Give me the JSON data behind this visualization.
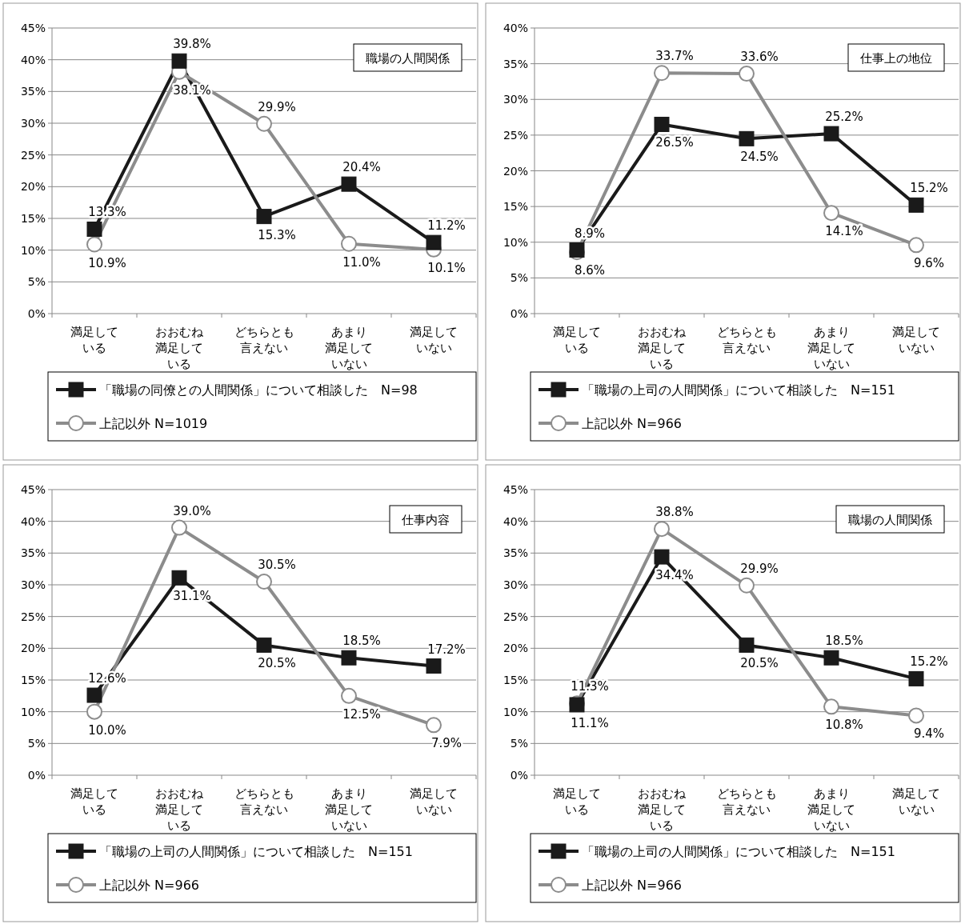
{
  "chart_data": [
    {
      "type": "line",
      "annotations": [
        "職場の人間関係"
      ],
      "categories": [
        "満足している",
        "おおむね満足している",
        "どちらとも言えない",
        "あまり満足していない",
        "満足していない"
      ],
      "ylim": [
        0,
        45
      ],
      "yticks": [
        {
          "value": 0,
          "label": "0%"
        },
        {
          "value": 5,
          "label": "5%"
        },
        {
          "value": 10,
          "label": "10%"
        },
        {
          "value": 15,
          "label": "15%"
        },
        {
          "value": 20,
          "label": "20%"
        },
        {
          "value": 25,
          "label": "25%"
        },
        {
          "value": 30,
          "label": "30%"
        },
        {
          "value": 35,
          "label": "35%"
        },
        {
          "value": 40,
          "label": "40%"
        },
        {
          "value": 45,
          "label": "45%"
        }
      ],
      "grid": "y",
      "legend": "bottom",
      "line_style": "solid",
      "series": [
        {
          "name": "「職場の同僚との人間関係」について相談した　N=98",
          "color": "#1a1a1a",
          "marker": "square",
          "values": [
            13.3,
            39.8,
            15.3,
            20.4,
            11.2
          ],
          "value_labels": [
            "13.3%",
            "39.8%",
            "15.3%",
            "20.4%",
            "11.2%"
          ]
        },
        {
          "name": "上記以外 N=1019",
          "color": "#8c8c8c",
          "marker": "circle",
          "values": [
            10.9,
            38.1,
            29.9,
            11.0,
            10.1
          ],
          "value_labels": [
            "10.9%",
            "38.1%",
            "29.9%",
            "11.0%",
            "10.1%"
          ]
        }
      ]
    },
    {
      "type": "line",
      "annotations": [
        "仕事上の地位"
      ],
      "categories": [
        "満足している",
        "おおむね満足している",
        "どちらとも言えない",
        "あまり満足していない",
        "満足していない"
      ],
      "ylim": [
        0,
        40
      ],
      "yticks": [
        {
          "value": 0,
          "label": "0%"
        },
        {
          "value": 5,
          "label": "5%"
        },
        {
          "value": 10,
          "label": "10%"
        },
        {
          "value": 15,
          "label": "15%"
        },
        {
          "value": 20,
          "label": "20%"
        },
        {
          "value": 25,
          "label": "25%"
        },
        {
          "value": 30,
          "label": "30%"
        },
        {
          "value": 35,
          "label": "35%"
        },
        {
          "value": 40,
          "label": "40%"
        }
      ],
      "grid": "y",
      "legend": "bottom",
      "line_style": "solid",
      "series": [
        {
          "name": "「職場の上司の人間関係」について相談した　N=151",
          "color": "#1a1a1a",
          "marker": "square",
          "values": [
            8.9,
            26.5,
            24.5,
            25.2,
            15.2
          ],
          "value_labels": [
            "8.9%",
            "26.5%",
            "24.5%",
            "25.2%",
            "15.2%"
          ]
        },
        {
          "name": "上記以外 N=966",
          "color": "#8c8c8c",
          "marker": "circle",
          "values": [
            8.6,
            33.7,
            33.6,
            14.1,
            9.6
          ],
          "value_labels": [
            "8.6%",
            "33.7%",
            "33.6%",
            "14.1%",
            "9.6%"
          ]
        }
      ]
    },
    {
      "type": "line",
      "annotations": [
        "仕事内容"
      ],
      "categories": [
        "満足している",
        "おおむね満足している",
        "どちらとも言えない",
        "あまり満足していない",
        "満足していない"
      ],
      "ylim": [
        0,
        45
      ],
      "yticks": [
        {
          "value": 0,
          "label": "0%"
        },
        {
          "value": 5,
          "label": "5%"
        },
        {
          "value": 10,
          "label": "10%"
        },
        {
          "value": 15,
          "label": "15%"
        },
        {
          "value": 20,
          "label": "20%"
        },
        {
          "value": 25,
          "label": "25%"
        },
        {
          "value": 30,
          "label": "30%"
        },
        {
          "value": 35,
          "label": "35%"
        },
        {
          "value": 40,
          "label": "40%"
        },
        {
          "value": 45,
          "label": "45%"
        }
      ],
      "grid": "y",
      "legend": "bottom",
      "line_style": "solid",
      "series": [
        {
          "name": "「職場の上司の人間関係」について相談した　N=151",
          "color": "#1a1a1a",
          "marker": "square",
          "values": [
            12.6,
            31.1,
            20.5,
            18.5,
            17.2
          ],
          "value_labels": [
            "12.6%",
            "31.1%",
            "20.5%",
            "18.5%",
            "17.2%"
          ]
        },
        {
          "name": "上記以外 N=966",
          "color": "#8c8c8c",
          "marker": "circle",
          "values": [
            10.0,
            39.0,
            30.5,
            12.5,
            7.9
          ],
          "value_labels": [
            "10.0%",
            "39.0%",
            "30.5%",
            "12.5%",
            "7.9%"
          ]
        }
      ]
    },
    {
      "type": "line",
      "annotations": [
        "職場の人間関係"
      ],
      "categories": [
        "満足している",
        "おおむね満足している",
        "どちらとも言えない",
        "あまり満足していない",
        "満足していない"
      ],
      "ylim": [
        0,
        45
      ],
      "yticks": [
        {
          "value": 0,
          "label": "0%"
        },
        {
          "value": 5,
          "label": "5%"
        },
        {
          "value": 10,
          "label": "10%"
        },
        {
          "value": 15,
          "label": "15%"
        },
        {
          "value": 20,
          "label": "20%"
        },
        {
          "value": 25,
          "label": "25%"
        },
        {
          "value": 30,
          "label": "30%"
        },
        {
          "value": 35,
          "label": "35%"
        },
        {
          "value": 40,
          "label": "40%"
        },
        {
          "value": 45,
          "label": "45%"
        }
      ],
      "grid": "y",
      "legend": "bottom",
      "line_style": "solid",
      "series": [
        {
          "name": "「職場の上司の人間関係」について相談した　N=151",
          "color": "#1a1a1a",
          "marker": "square",
          "values": [
            11.1,
            34.4,
            20.5,
            18.5,
            15.2
          ],
          "value_labels": [
            "11.1%",
            "34.4%",
            "20.5%",
            "18.5%",
            "15.2%"
          ]
        },
        {
          "name": "上記以外 N=966",
          "color": "#8c8c8c",
          "marker": "circle",
          "values": [
            11.3,
            38.8,
            29.9,
            10.8,
            9.4
          ],
          "value_labels": [
            "11.3%",
            "38.8%",
            "29.9%",
            "10.8%",
            "9.4%"
          ]
        }
      ]
    }
  ]
}
